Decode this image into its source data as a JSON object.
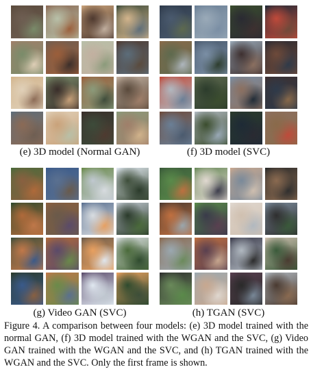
{
  "panels": [
    {
      "id": "e",
      "label": "(e) 3D model (Normal GAN)",
      "palette": [
        "#5a4a3c",
        "#8b6a55",
        "#c9a27a",
        "#3d4b3a",
        "#a07f6a",
        "#6e5e52",
        "#b8c0a8",
        "#4f3a30",
        "#d2b48c",
        "#7a8c6a",
        "#9b5e3a",
        "#c2b0a0",
        "#5c6d7a",
        "#e0d0b8",
        "#3a2e2a",
        "#8a9a7a"
      ]
    },
    {
      "id": "f",
      "label": "(f) 3D model (SVC)",
      "palette": [
        "#2e3a4a",
        "#6a7f96",
        "#3b4d2e",
        "#1e2a36",
        "#8a6a4a",
        "#4a5a6e",
        "#9aaab8",
        "#2a2a32",
        "#c04a3a",
        "#5e6a4e",
        "#7a8ea4",
        "#3e3030",
        "#6e4a3a",
        "#b0b8c0",
        "#2c3c2c",
        "#8c7060"
      ]
    },
    {
      "id": "g",
      "label": "(g) Video GAN (SVC)",
      "palette": [
        "#4a6a3a",
        "#3a5a8a",
        "#6a8a4a",
        "#e0e8f0",
        "#2e4a2e",
        "#8a6040",
        "#5a7090",
        "#c0c8d0",
        "#3e4e3a",
        "#b06a3a",
        "#6a5a4a",
        "#d8dce0",
        "#2a3a2a",
        "#c0784a",
        "#5a4a6a",
        "#e8a060"
      ]
    },
    {
      "id": "h",
      "label": "(h) TGAN (SVC)",
      "palette": [
        "#3a5a3a",
        "#6a8a5a",
        "#c8a890",
        "#2a2a2a",
        "#4a3a30",
        "#5a8a4a",
        "#e0d8d0",
        "#7a8a9a",
        "#8a6a50",
        "#c07040",
        "#3a3a4a",
        "#d0c0b0",
        "#2e2e2e",
        "#9aa8b0",
        "#5a4050",
        "#b0b8c0"
      ]
    }
  ],
  "caption": "Figure 4. A comparison between four models: (e) 3D model trained with the normal GAN, (f) 3D model trained with the WGAN and the SVC, (g) Video GAN trained with the WGAN and the SVC, and (h) TGAN trained with the WGAN and the SVC. Only the first frame is shown."
}
